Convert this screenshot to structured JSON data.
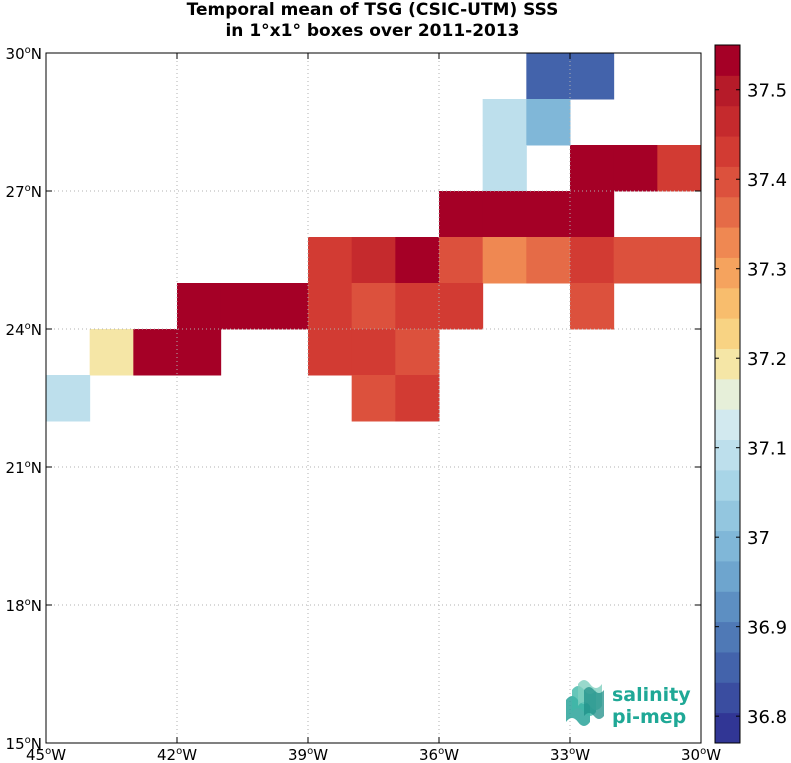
{
  "chart_data": {
    "type": "heatmap",
    "title": "Temporal mean of TSG (CSIC-UTM) SSS",
    "subtitle": "in 1°x1° boxes over 2011-2013",
    "xlim": [
      -45,
      -30
    ],
    "ylim": [
      15,
      30
    ],
    "grid": true,
    "x_ticks": [
      {
        "value": -45,
        "deg": "45",
        "hemi": "W"
      },
      {
        "value": -42,
        "deg": "42",
        "hemi": "W"
      },
      {
        "value": -39,
        "deg": "39",
        "hemi": "W"
      },
      {
        "value": -36,
        "deg": "36",
        "hemi": "W"
      },
      {
        "value": -33,
        "deg": "33",
        "hemi": "W"
      },
      {
        "value": -30,
        "deg": "30",
        "hemi": "W"
      }
    ],
    "y_ticks": [
      {
        "value": 15,
        "deg": "15",
        "hemi": "N"
      },
      {
        "value": 18,
        "deg": "18",
        "hemi": "N"
      },
      {
        "value": 21,
        "deg": "21",
        "hemi": "N"
      },
      {
        "value": 24,
        "deg": "24",
        "hemi": "N"
      },
      {
        "value": 27,
        "deg": "27",
        "hemi": "N"
      },
      {
        "value": 30,
        "deg": "30",
        "hemi": "N"
      }
    ],
    "cells": [
      {
        "lon": -34,
        "lat": 29,
        "value": 36.84
      },
      {
        "lon": -33,
        "lat": 29,
        "value": 36.84
      },
      {
        "lon": -35,
        "lat": 28,
        "value": 37.1
      },
      {
        "lon": -34,
        "lat": 28,
        "value": 36.99
      },
      {
        "lon": -35,
        "lat": 27,
        "value": 37.1
      },
      {
        "lon": -33,
        "lat": 27,
        "value": 37.52
      },
      {
        "lon": -32,
        "lat": 27,
        "value": 37.52
      },
      {
        "lon": -31,
        "lat": 27,
        "value": 37.42
      },
      {
        "lon": -36,
        "lat": 26,
        "value": 37.52
      },
      {
        "lon": -35,
        "lat": 26,
        "value": 37.52
      },
      {
        "lon": -34,
        "lat": 26,
        "value": 37.52
      },
      {
        "lon": -33,
        "lat": 26,
        "value": 37.52
      },
      {
        "lon": -39,
        "lat": 25,
        "value": 37.44
      },
      {
        "lon": -38,
        "lat": 25,
        "value": 37.47
      },
      {
        "lon": -37,
        "lat": 25,
        "value": 37.52
      },
      {
        "lon": -36,
        "lat": 25,
        "value": 37.41
      },
      {
        "lon": -35,
        "lat": 25,
        "value": 37.32
      },
      {
        "lon": -34,
        "lat": 25,
        "value": 37.37
      },
      {
        "lon": -33,
        "lat": 25,
        "value": 37.44
      },
      {
        "lon": -32,
        "lat": 25,
        "value": 37.41
      },
      {
        "lon": -31,
        "lat": 25,
        "value": 37.41
      },
      {
        "lon": -42,
        "lat": 24,
        "value": 37.52
      },
      {
        "lon": -41,
        "lat": 24,
        "value": 37.52
      },
      {
        "lon": -40,
        "lat": 24,
        "value": 37.52
      },
      {
        "lon": -39,
        "lat": 24,
        "value": 37.44
      },
      {
        "lon": -38,
        "lat": 24,
        "value": 37.4
      },
      {
        "lon": -37,
        "lat": 24,
        "value": 37.44
      },
      {
        "lon": -36,
        "lat": 24,
        "value": 37.44
      },
      {
        "lon": -33,
        "lat": 24,
        "value": 37.4
      },
      {
        "lon": -44,
        "lat": 23,
        "value": 37.2
      },
      {
        "lon": -43,
        "lat": 23,
        "value": 37.52
      },
      {
        "lon": -42,
        "lat": 23,
        "value": 37.52
      },
      {
        "lon": -39,
        "lat": 23,
        "value": 37.43
      },
      {
        "lon": -38,
        "lat": 23,
        "value": 37.43
      },
      {
        "lon": -37,
        "lat": 23,
        "value": 37.4
      },
      {
        "lon": -38,
        "lat": 22,
        "value": 37.4
      },
      {
        "lon": -37,
        "lat": 22,
        "value": 37.44
      },
      {
        "lon": -45,
        "lat": 22,
        "value": 37.1
      }
    ],
    "colorbar": {
      "min": 36.77,
      "max": 37.55,
      "ticks": [
        {
          "value": 36.8,
          "label": "36.8"
        },
        {
          "value": 36.9,
          "label": "36.9"
        },
        {
          "value": 37.0,
          "label": "37"
        },
        {
          "value": 37.1,
          "label": "37.1"
        },
        {
          "value": 37.2,
          "label": "37.2"
        },
        {
          "value": 37.3,
          "label": "37.3"
        },
        {
          "value": 37.4,
          "label": "37.4"
        },
        {
          "value": 37.5,
          "label": "37.5"
        }
      ],
      "colors": [
        "#313695",
        "#3a4da0",
        "#4363ab",
        "#4f79b6",
        "#5d8fc2",
        "#6ea5ce",
        "#80b7d8",
        "#93c6df",
        "#a8d5e7",
        "#bddfec",
        "#d2e9ef",
        "#e6efd9",
        "#f5e6a6",
        "#f8d383",
        "#f8bd6d",
        "#f5a35e",
        "#ef8852",
        "#e56b47",
        "#dc513d",
        "#d23b33",
        "#c52a2d",
        "#b61b29",
        "#a50026"
      ]
    },
    "logo": {
      "line1": "salinity",
      "line2": "pi-mep"
    }
  }
}
